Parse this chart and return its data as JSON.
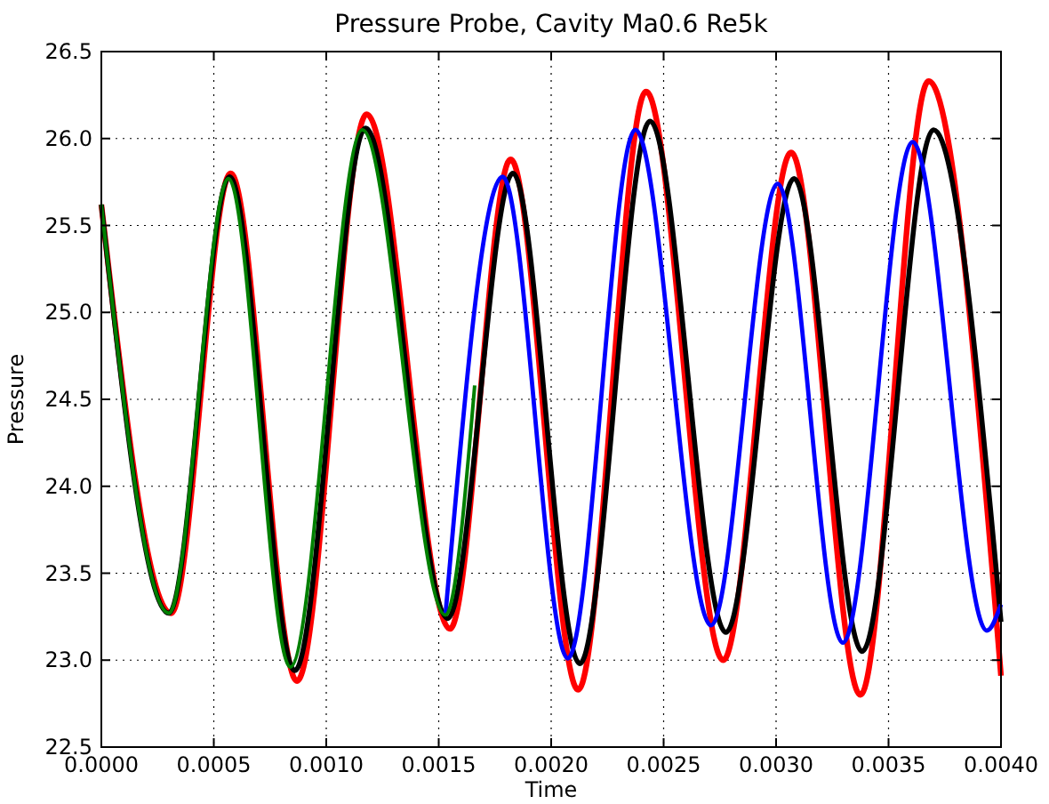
{
  "chart_data": {
    "type": "line",
    "title": "Pressure Probe, Cavity Ma0.6 Re5k",
    "xlabel": "Time",
    "ylabel": "Pressure",
    "xlim": [
      0,
      0.004
    ],
    "ylim": [
      22.5,
      26.5
    ],
    "xticks": [
      {
        "value": 0,
        "label": "0.0000"
      },
      {
        "value": 0.0005,
        "label": "0.0005"
      },
      {
        "value": 0.001,
        "label": "0.0010"
      },
      {
        "value": 0.0015,
        "label": "0.0015"
      },
      {
        "value": 0.002,
        "label": "0.0020"
      },
      {
        "value": 0.0025,
        "label": "0.0025"
      },
      {
        "value": 0.003,
        "label": "0.0030"
      },
      {
        "value": 0.0035,
        "label": "0.0035"
      },
      {
        "value": 0.004,
        "label": "0.0040"
      }
    ],
    "yticks": [
      {
        "value": 22.5,
        "label": "22.5"
      },
      {
        "value": 23,
        "label": "23.0"
      },
      {
        "value": 23.5,
        "label": "23.5"
      },
      {
        "value": 24,
        "label": "24.0"
      },
      {
        "value": 24.5,
        "label": "24.5"
      },
      {
        "value": 25,
        "label": "25.0"
      },
      {
        "value": 25.5,
        "label": "25.5"
      },
      {
        "value": 26,
        "label": "26.0"
      },
      {
        "value": 26.5,
        "label": "26.5"
      }
    ],
    "grid": true,
    "line_style": "solid",
    "marker": "none",
    "series": [
      {
        "color": "#ff0000",
        "x": [
          0,
          0.00031,
          0.000575,
          0.00087,
          0.00118,
          0.00155,
          0.00182,
          0.00212,
          0.002422,
          0.002765,
          0.003067,
          0.003375,
          0.003678,
          0.004
        ],
        "values": [
          25.62,
          23.27,
          25.8,
          22.88,
          26.14,
          23.18,
          25.88,
          22.83,
          26.27,
          23.0,
          25.92,
          22.8,
          26.33,
          22.91
        ]
      },
      {
        "color": "#000000",
        "x": [
          0,
          0.0003,
          0.00057,
          0.00086,
          0.001175,
          0.00154,
          0.00183,
          0.002127,
          0.00244,
          0.002777,
          0.00308,
          0.003383,
          0.0037,
          0.004
        ],
        "values": [
          25.62,
          23.27,
          25.78,
          22.94,
          26.06,
          23.24,
          25.8,
          22.98,
          26.1,
          23.16,
          25.77,
          23.05,
          26.05,
          23.22
        ]
      },
      {
        "color": "#0000ff",
        "x": [
          0.00153,
          0.001784,
          0.002074,
          0.002374,
          0.002711,
          0.003007,
          0.003297,
          0.003607,
          0.003937,
          0.004
        ],
        "values": [
          23.26,
          25.78,
          23.01,
          26.05,
          23.2,
          25.74,
          23.1,
          25.98,
          23.17,
          23.32
        ]
      },
      {
        "color": "#008000",
        "x": [
          0,
          0.0003,
          0.000565,
          0.00084,
          0.00116,
          0.00153,
          0.00166
        ],
        "values": [
          25.62,
          23.27,
          25.77,
          22.96,
          26.05,
          23.26,
          24.58
        ]
      }
    ]
  }
}
